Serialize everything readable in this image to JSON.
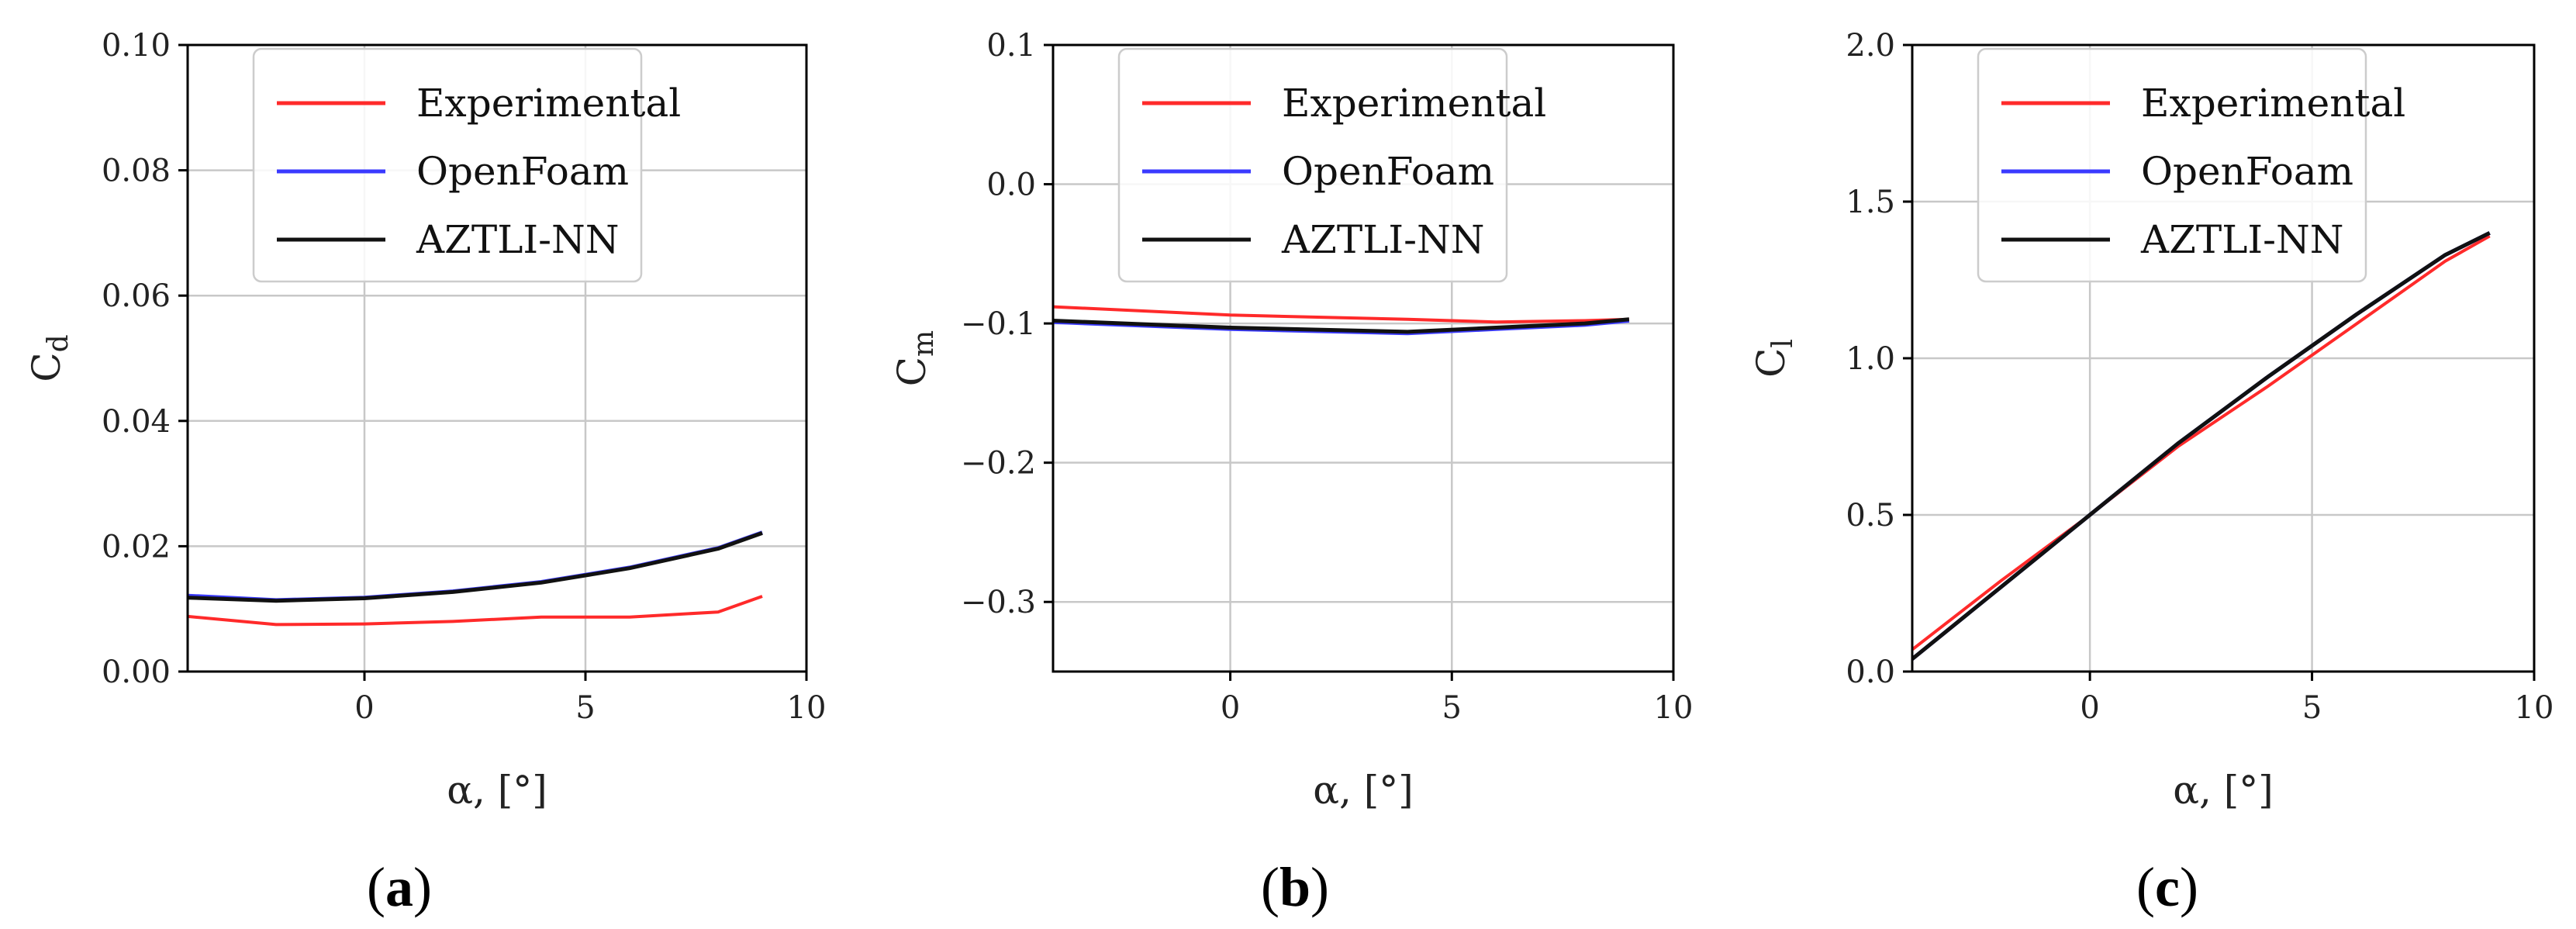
{
  "chart_data": [
    {
      "type": "line",
      "panel": "a",
      "caption_letter": "a",
      "ylabel_main": "C",
      "ylabel_sub": "d",
      "xlabel": "α, [°]",
      "xlim": [
        -4,
        10
      ],
      "ylim": [
        0,
        0.1
      ],
      "xticks": [
        0,
        5,
        10
      ],
      "yticks": [
        0,
        0.02,
        0.04,
        0.06,
        0.08,
        0.1
      ],
      "ytick_labels": [
        "0.00",
        "0.02",
        "0.04",
        "0.06",
        "0.08",
        "0.10"
      ],
      "grid": true,
      "legend_position": "top-center",
      "series": [
        {
          "name": "Experimental",
          "color": "#ff2a2a",
          "x": [
            -4,
            -2,
            0,
            2,
            4,
            6,
            8,
            9
          ],
          "y": [
            0.0088,
            0.0075,
            0.0076,
            0.008,
            0.0087,
            0.0087,
            0.0095,
            0.012
          ]
        },
        {
          "name": "OpenFoam",
          "color": "#3a3aff",
          "x": [
            -4,
            -2,
            0,
            2,
            4,
            6,
            8,
            9
          ],
          "y": [
            0.0121,
            0.0114,
            0.0118,
            0.0128,
            0.0143,
            0.0166,
            0.0197,
            0.0222
          ]
        },
        {
          "name": "AZTLI-NN",
          "color": "#111111",
          "x": [
            -4,
            -2,
            0,
            2,
            4,
            6,
            8,
            9
          ],
          "y": [
            0.0118,
            0.0113,
            0.0117,
            0.0127,
            0.0142,
            0.0165,
            0.0196,
            0.0221
          ]
        }
      ]
    },
    {
      "type": "line",
      "panel": "b",
      "caption_letter": "b",
      "ylabel_main": "C",
      "ylabel_sub": "m",
      "xlabel": "α, [°]",
      "xlim": [
        -4,
        10
      ],
      "ylim": [
        -0.35,
        0.1
      ],
      "xticks": [
        0,
        5,
        10
      ],
      "yticks": [
        -0.3,
        -0.2,
        -0.1,
        0,
        0.1
      ],
      "ytick_labels": [
        "−0.3",
        "−0.2",
        "−0.1",
        "0.0",
        "0.1"
      ],
      "grid": true,
      "legend_position": "top-center",
      "series": [
        {
          "name": "Experimental",
          "color": "#ff2a2a",
          "x": [
            -4,
            0,
            4,
            6,
            8,
            9
          ],
          "y": [
            -0.088,
            -0.094,
            -0.097,
            -0.099,
            -0.098,
            -0.097
          ]
        },
        {
          "name": "OpenFoam",
          "color": "#3a3aff",
          "x": [
            -4,
            0,
            4,
            6,
            8,
            9
          ],
          "y": [
            -0.099,
            -0.104,
            -0.107,
            -0.104,
            -0.101,
            -0.098
          ]
        },
        {
          "name": "AZTLI-NN",
          "color": "#111111",
          "x": [
            -4,
            0,
            4,
            6,
            8,
            9
          ],
          "y": [
            -0.098,
            -0.103,
            -0.106,
            -0.103,
            -0.1,
            -0.097
          ]
        }
      ]
    },
    {
      "type": "line",
      "panel": "c",
      "caption_letter": "c",
      "ylabel_main": "C",
      "ylabel_sub": "l",
      "xlabel": "α, [°]",
      "xlim": [
        -4,
        10
      ],
      "ylim": [
        0,
        2.0
      ],
      "xticks": [
        0,
        5,
        10
      ],
      "yticks": [
        0,
        0.5,
        1.0,
        1.5,
        2.0
      ],
      "ytick_labels": [
        "0.0",
        "0.5",
        "1.0",
        "1.5",
        "2.0"
      ],
      "grid": true,
      "legend_position": "top-center",
      "series": [
        {
          "name": "Experimental",
          "color": "#ff2a2a",
          "x": [
            -4,
            -2,
            0,
            2,
            4,
            6,
            8,
            9
          ],
          "y": [
            0.07,
            0.29,
            0.5,
            0.72,
            0.91,
            1.11,
            1.31,
            1.39
          ]
        },
        {
          "name": "OpenFoam",
          "color": "#3a3aff",
          "x": [
            -4,
            -2,
            0,
            2,
            4,
            6,
            8,
            9
          ],
          "y": [
            0.04,
            0.27,
            0.5,
            0.73,
            0.94,
            1.14,
            1.33,
            1.4
          ]
        },
        {
          "name": "AZTLI-NN",
          "color": "#111111",
          "x": [
            -4,
            -2,
            0,
            2,
            4,
            6,
            8,
            9
          ],
          "y": [
            0.04,
            0.27,
            0.5,
            0.73,
            0.94,
            1.14,
            1.33,
            1.4
          ]
        }
      ]
    }
  ]
}
